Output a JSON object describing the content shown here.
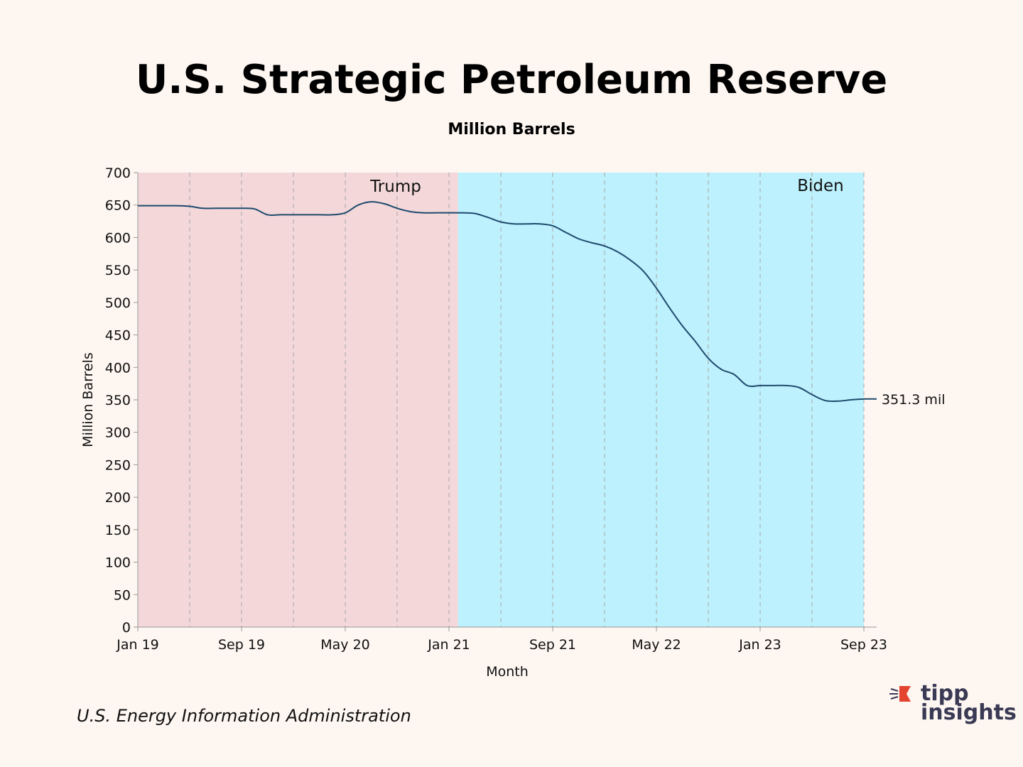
{
  "header": {
    "title": "U.S. Strategic Petroleum Reserve",
    "subtitle": "Million Barrels"
  },
  "source": "U.S. Energy Information Administration",
  "logo": {
    "line1": "tipp",
    "line2": "insights"
  },
  "colors": {
    "background": "#fdf6f1",
    "trump_band": "#f3d7d9",
    "biden_band": "#bdf1fd",
    "line": "#1e4a6e"
  },
  "chart_data": {
    "type": "line",
    "title": "U.S. Strategic Petroleum Reserve",
    "subtitle": "Million Barrels",
    "xlabel": "Month",
    "ylabel": "Million Barrels",
    "ylim": [
      0,
      700
    ],
    "yticks": [
      "0",
      "50",
      "100",
      "150",
      "200",
      "250",
      "300",
      "350",
      "400",
      "450",
      "500",
      "550",
      "600",
      "650",
      "700"
    ],
    "xticks": [
      {
        "label": "Jan 19",
        "index": 0
      },
      {
        "label": "Sep 19",
        "index": 8
      },
      {
        "label": "May 20",
        "index": 16
      },
      {
        "label": "Jan 21",
        "index": 24
      },
      {
        "label": "Sep 21",
        "index": 32
      },
      {
        "label": "May 22",
        "index": 40
      },
      {
        "label": "Jan 23",
        "index": 48
      },
      {
        "label": "Sep 23",
        "index": 56
      }
    ],
    "gridlines": "vertical dashed every 4 months",
    "regions": [
      {
        "label": "Trump",
        "start_index": 0,
        "end_index": 24.7
      },
      {
        "label": "Biden",
        "start_index": 24.7,
        "end_index": 56
      }
    ],
    "end_label": "351.3 mil",
    "series": [
      {
        "name": "Million Barrels",
        "x_start": "Jan 19",
        "values": [
          649,
          649,
          649,
          649,
          648,
          645,
          645,
          645,
          645,
          644,
          635,
          635,
          635,
          635,
          635,
          635,
          638,
          650,
          655,
          652,
          645,
          640,
          638,
          638,
          638,
          638,
          637,
          631,
          624,
          621,
          621,
          621,
          618,
          608,
          598,
          592,
          587,
          578,
          565,
          548,
          522,
          492,
          464,
          440,
          414,
          397,
          389,
          372,
          372,
          372,
          372,
          369,
          358,
          349,
          348,
          350,
          351.3
        ]
      }
    ]
  }
}
